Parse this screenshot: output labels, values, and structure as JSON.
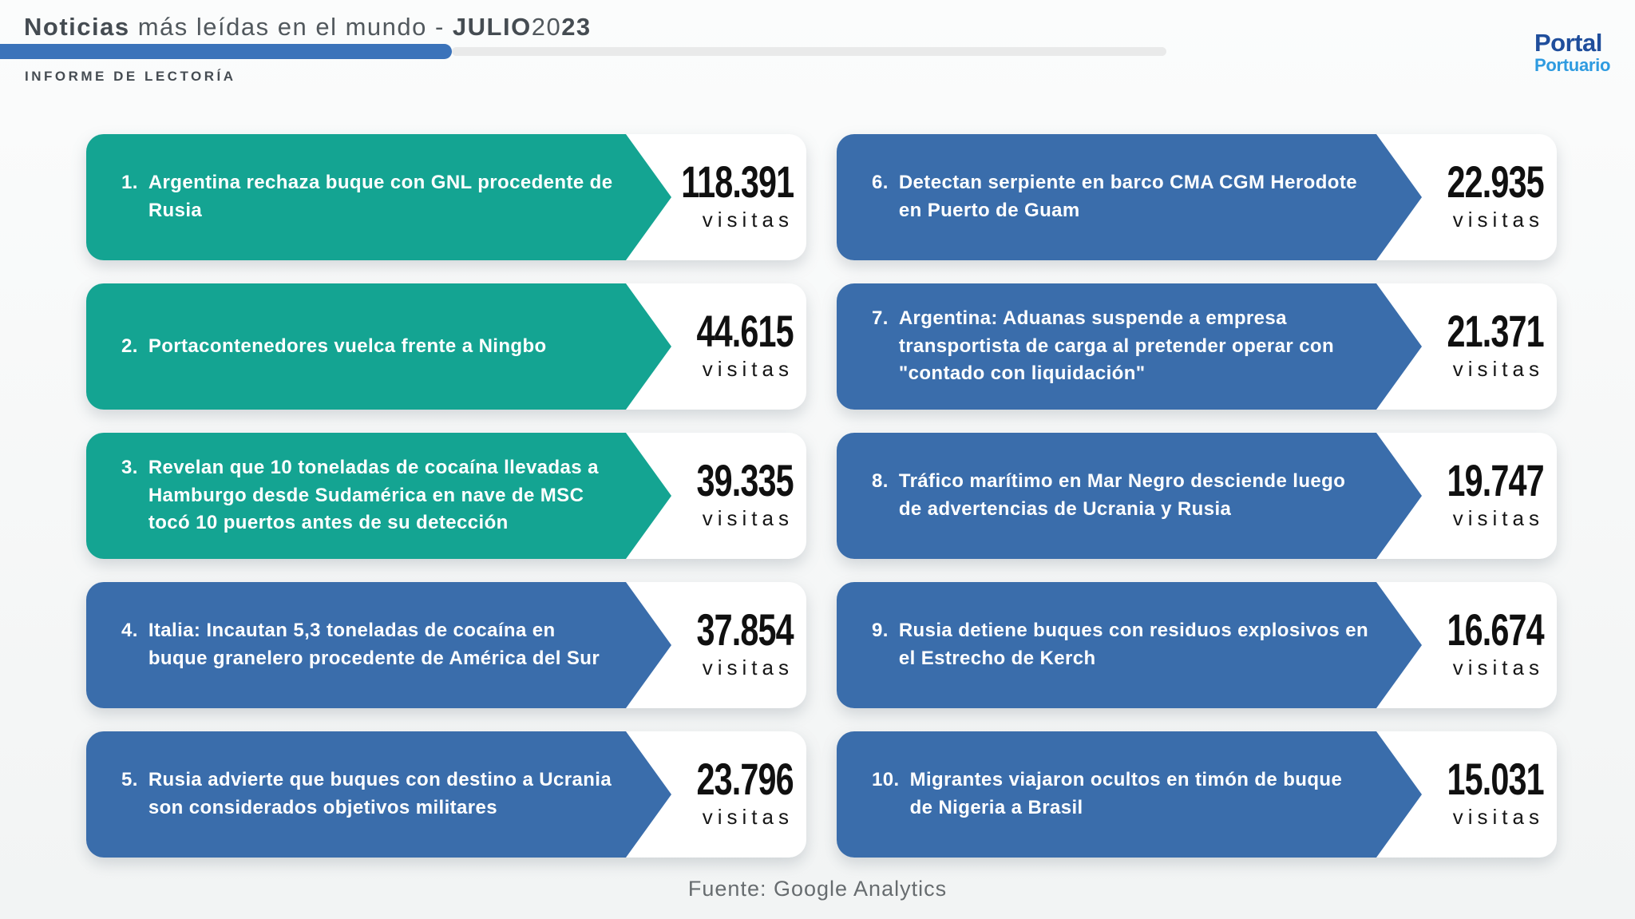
{
  "header": {
    "title_word_bold": "Noticias",
    "title_rest": " más leídas en el mundo - ",
    "title_month": "JULIO",
    "title_year_light": "20",
    "title_year_bold": "23",
    "subtitle": "INFORME DE LECTORÍA",
    "logo_top": "Portal",
    "logo_bottom": "Portuario"
  },
  "footer": {
    "source": "Fuente: Google Analytics"
  },
  "colors": {
    "teal": "#14a492",
    "blue": "#3a6dab",
    "bar": "#3b73ba",
    "track": "#e9eaea",
    "ink": "#454c52",
    "navy": "#1f4e9c",
    "sky": "#2e9be0",
    "bg1": "#fbfcfc",
    "bg2": "#f2f4f4",
    "muted": "#676c6f",
    "number": "#101010"
  },
  "items": [
    {
      "rank": "1.",
      "title": "Argentina rechaza buque con GNL procedente de Rusia",
      "visits": "118.391",
      "visits_label": "visitas",
      "accent": "teal"
    },
    {
      "rank": "2.",
      "title": "Portacontenedores vuelca frente a Ningbo",
      "visits": "44.615",
      "visits_label": "visitas",
      "accent": "teal"
    },
    {
      "rank": "3.",
      "title": "Revelan que 10 toneladas de cocaína llevadas a Hamburgo desde Sudamérica en nave de MSC tocó 10 puertos antes de su detección",
      "visits": "39.335",
      "visits_label": "visitas",
      "accent": "teal"
    },
    {
      "rank": "4.",
      "title": "Italia: Incautan 5,3 toneladas de cocaína en buque granelero procedente de América del Sur",
      "visits": "37.854",
      "visits_label": "visitas",
      "accent": "blue"
    },
    {
      "rank": "5.",
      "title": "Rusia advierte que buques con destino a Ucrania son considerados objetivos militares",
      "visits": "23.796",
      "visits_label": "visitas",
      "accent": "blue"
    },
    {
      "rank": "6.",
      "title": "Detectan serpiente en barco CMA CGM Herodote en Puerto de Guam",
      "visits": "22.935",
      "visits_label": "visitas",
      "accent": "blue"
    },
    {
      "rank": "7.",
      "title": "Argentina: Aduanas suspende a empresa transportista de carga al pretender operar con \"contado con liquidación\"",
      "visits": "21.371",
      "visits_label": "visitas",
      "accent": "blue"
    },
    {
      "rank": "8.",
      "title": "Tráfico marítimo en Mar Negro desciende luego de advertencias de Ucrania y Rusia",
      "visits": "19.747",
      "visits_label": "visitas",
      "accent": "blue"
    },
    {
      "rank": "9.",
      "title": "Rusia detiene buques con residuos explosivos en el Estrecho de Kerch",
      "visits": "16.674",
      "visits_label": "visitas",
      "accent": "blue"
    },
    {
      "rank": "10.",
      "title": "Migrantes viajaron ocultos en timón de buque de Nigeria a Brasil",
      "visits": "15.031",
      "visits_label": "visitas",
      "accent": "blue"
    }
  ],
  "chart_data": {
    "type": "bar",
    "title": "Noticias más leídas en el mundo - JULIO 2023",
    "subtitle": "INFORME DE LECTORÍA",
    "source": "Fuente: Google Analytics",
    "value_unit": "visitas",
    "categories": [
      "Argentina rechaza buque con GNL procedente de Rusia",
      "Portacontenedores vuelca frente a Ningbo",
      "Revelan que 10 toneladas de cocaína llevadas a Hamburgo desde Sudamérica en nave de MSC tocó 10 puertos antes de su detección",
      "Italia: Incautan 5,3 toneladas de cocaína en buque granelero procedente de América del Sur",
      "Rusia advierte que buques con destino a Ucrania son considerados objetivos militares",
      "Detectan serpiente en barco CMA CGM Herodote en Puerto de Guam",
      "Argentina: Aduanas suspende a empresa transportista de carga al pretender operar con \"contado con liquidación\"",
      "Tráfico marítimo en Mar Negro desciende luego de advertencias de Ucrania y Rusia",
      "Rusia detiene buques con residuos explosivos en el Estrecho de Kerch",
      "Migrantes viajaron ocultos en timón de buque de Nigeria a Brasil"
    ],
    "values": [
      118391,
      44615,
      39335,
      37854,
      23796,
      22935,
      21371,
      19747,
      16674,
      15031
    ]
  }
}
